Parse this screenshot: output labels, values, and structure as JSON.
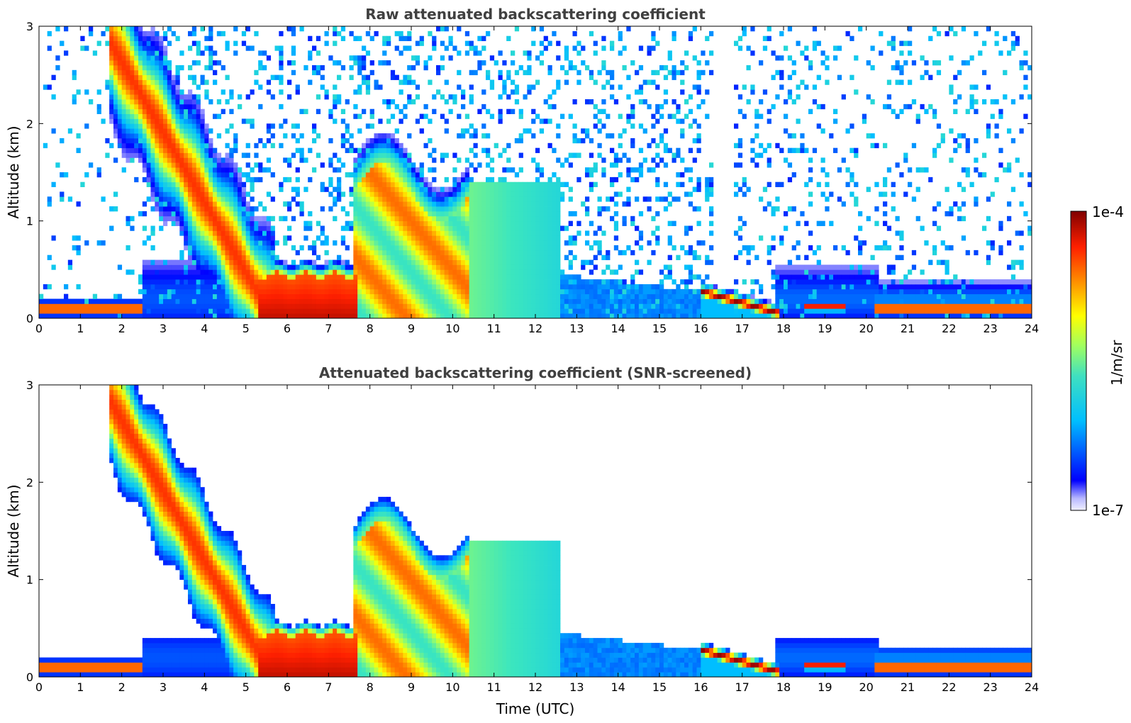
{
  "figure": {
    "colorbar": {
      "label": "1/m/sr",
      "max_label": "1e-4",
      "min_label": "1e-7",
      "range": [
        1e-07,
        0.0001
      ],
      "scale": "log",
      "colormap": "jet"
    }
  },
  "chart_data": [
    {
      "type": "heatmap",
      "title": "Raw attenuated backscattering coefficient",
      "xlabel": "",
      "ylabel": "Altitude (km)",
      "xlim": [
        0,
        24
      ],
      "ylim": [
        0,
        3
      ],
      "x_ticks": [
        "0",
        "1",
        "2",
        "3",
        "4",
        "5",
        "6",
        "7",
        "8",
        "9",
        "10",
        "11",
        "12",
        "13",
        "14",
        "15",
        "16",
        "17",
        "18",
        "19",
        "20",
        "21",
        "22",
        "23",
        "24"
      ],
      "y_ticks": [
        "0",
        "1",
        "2",
        "3"
      ],
      "features": [
        {
          "t": [
            0,
            2.5
          ],
          "alt": [
            0.05,
            0.15
          ],
          "level": 1.0
        },
        {
          "t": [
            1.7,
            5.2
          ],
          "alt_top": [
            3.0,
            0.9
          ],
          "level": 0.85
        },
        {
          "t": [
            5.5,
            7.5
          ],
          "alt": [
            0.0,
            0.45
          ],
          "level": 0.9
        },
        {
          "t": [
            7.7,
            10.3
          ],
          "alt": [
            0.0,
            1.6
          ],
          "level": 0.75
        },
        {
          "t": [
            10.3,
            12.6
          ],
          "alt": [
            0.0,
            1.4
          ],
          "level": 0.5
        },
        {
          "t": [
            12.6,
            16.3
          ],
          "alt": [
            0.0,
            0.45
          ],
          "level": 0.3
        },
        {
          "t": [
            16.3,
            17.8
          ],
          "alt": [
            0.05,
            0.3
          ],
          "level": 1.0
        },
        {
          "t": [
            18.5,
            19.5
          ],
          "alt": [
            0.08,
            0.15
          ],
          "level": 0.9
        },
        {
          "t": [
            20.2,
            24
          ],
          "alt": [
            0.02,
            0.18
          ],
          "level": 1.0
        }
      ],
      "screened": false
    },
    {
      "type": "heatmap",
      "title": "Attenuated backscattering coefficient (SNR-screened)",
      "xlabel": "Time (UTC)",
      "ylabel": "Altitude (km)",
      "xlim": [
        0,
        24
      ],
      "ylim": [
        0,
        3
      ],
      "x_ticks": [
        "0",
        "1",
        "2",
        "3",
        "4",
        "5",
        "6",
        "7",
        "8",
        "9",
        "10",
        "11",
        "12",
        "13",
        "14",
        "15",
        "16",
        "17",
        "18",
        "19",
        "20",
        "21",
        "22",
        "23",
        "24"
      ],
      "y_ticks": [
        "0",
        "1",
        "2",
        "3"
      ],
      "screened": true
    }
  ]
}
